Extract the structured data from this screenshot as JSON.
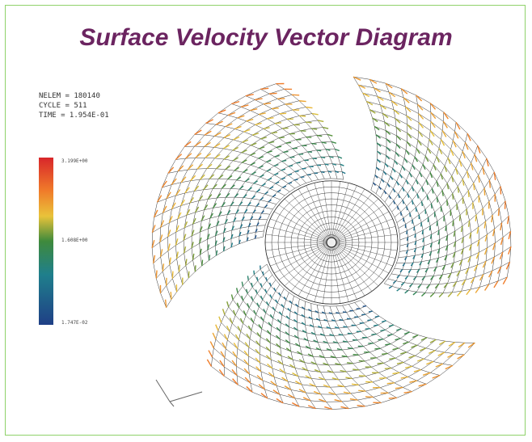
{
  "title": "Surface Velocity Vector Diagram",
  "info": [
    "NELEM =   180140",
    "CYCLE =      511",
    "TIME = 1.954E-01"
  ],
  "colorbar": {
    "labels": [
      "3.199E+00",
      "1.608E+00",
      "1.747E-02"
    ]
  }
}
